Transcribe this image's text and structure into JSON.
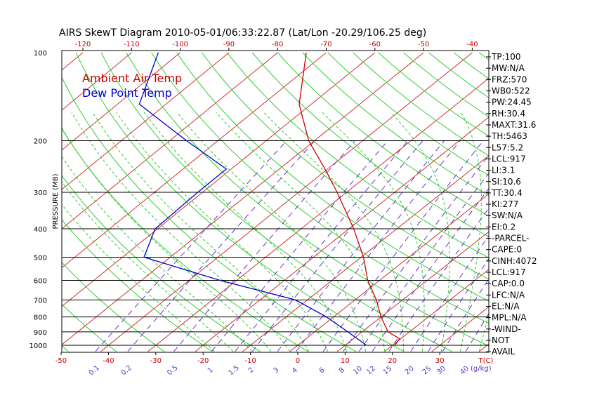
{
  "chart_data": {
    "type": "line",
    "title": "AIRS SkewT Diagram 2010-05-01/06:33:22.87 (Lat/Lon -20.29/106.25 deg)",
    "ylabel": "PRESSURE (MB)",
    "xlabel": "T(C)",
    "mixing_ratio_unit": "(g/kg)",
    "pressure_ticks": [
      100,
      200,
      300,
      400,
      500,
      600,
      700,
      800,
      900,
      1000
    ],
    "temp_ticks_bottom": [
      -50,
      -40,
      -30,
      -20,
      -10,
      0,
      10,
      20,
      30
    ],
    "temp_ticks_top": [
      -120,
      -110,
      -100,
      -90,
      -80,
      -70,
      -60,
      -50,
      -40
    ],
    "mixing_ratio_ticks": [
      "0.1",
      "0.2",
      "0.5",
      "1",
      "1.5",
      "2",
      "3",
      "4",
      "6",
      "8",
      "10",
      "12",
      "15",
      "20",
      "25",
      "30",
      "40"
    ],
    "legend": [
      {
        "name": "Ambient Air Temp",
        "color": "#cc0000"
      },
      {
        "name": "Dew Point Temp",
        "color": "#0000cc"
      }
    ],
    "series": [
      {
        "name": "Ambient Air Temp",
        "color": "#cc0000",
        "points": [
          {
            "p": 100,
            "t": -74.1
          },
          {
            "p": 150,
            "t": -62.5
          },
          {
            "p": 200,
            "t": -51.2
          },
          {
            "p": 250,
            "t": -40.5
          },
          {
            "p": 300,
            "t": -32.0
          },
          {
            "p": 400,
            "t": -19.0
          },
          {
            "p": 500,
            "t": -9.5
          },
          {
            "p": 600,
            "t": -2.5
          },
          {
            "p": 700,
            "t": 4.5
          },
          {
            "p": 800,
            "t": 10.0
          },
          {
            "p": 900,
            "t": 15.5
          },
          {
            "p": 950,
            "t": 19.8
          },
          {
            "p": 1000,
            "t": 20.5
          }
        ]
      },
      {
        "name": "Dew Point Temp",
        "color": "#0000cc",
        "points": [
          {
            "p": 100,
            "t": -104.5
          },
          {
            "p": 150,
            "t": -95.5
          },
          {
            "p": 200,
            "t": -76.5
          },
          {
            "p": 250,
            "t": -61.0
          },
          {
            "p": 300,
            "t": -61.0
          },
          {
            "p": 400,
            "t": -60.5
          },
          {
            "p": 500,
            "t": -55.5
          },
          {
            "p": 600,
            "t": -33.5
          },
          {
            "p": 700,
            "t": -12.5
          },
          {
            "p": 800,
            "t": -1.5
          },
          {
            "p": 900,
            "t": 7.0
          },
          {
            "p": 1000,
            "t": 14.5
          }
        ]
      }
    ],
    "background_colors": {
      "isotherm": "#cc3333",
      "dry_adiabat": "#33cc33",
      "moist_adiabat": "#33cc33",
      "mixing_ratio": "#6633cc",
      "isobar": "#000000"
    }
  },
  "indices": [
    "TP:100",
    "MW:N/A",
    "FRZ:570",
    "WB0:522",
    "PW:24.45",
    "RH:30.4",
    "MAXT:31.6",
    "TH:5463",
    "L57:5.2",
    "LCL:917",
    "LI:3.1",
    "SI:10.6",
    "TT:30.4",
    "KI:277",
    "SW:N/A",
    "EI:0.2",
    "-PARCEL-",
    "CAPE:0",
    "CINH:4072",
    "LCL:917",
    "CAP:0.0",
    "LFC:N/A",
    "EL:N/A",
    "MPL:N/A",
    "-WIND-",
    "NOT",
    "AVAIL"
  ]
}
